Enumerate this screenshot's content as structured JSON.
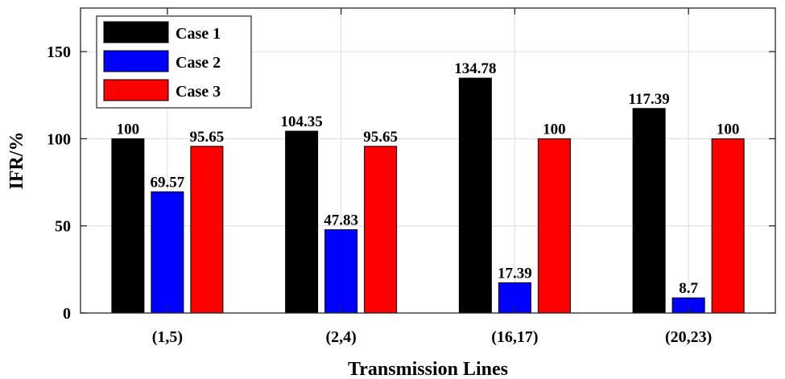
{
  "chart_data": {
    "type": "bar",
    "title": "",
    "xlabel": "Transmission Lines",
    "ylabel": "IFR/%",
    "categories": [
      "(1,5)",
      "(2,4)",
      "(16,17)",
      "(20,23)"
    ],
    "ylim": [
      0,
      175
    ],
    "yticks": [
      0,
      50,
      100,
      150
    ],
    "grid": true,
    "legend_position": "top-left",
    "series": [
      {
        "name": "Case 1",
        "color": "#000000",
        "values": [
          100,
          104.35,
          134.78,
          117.39
        ],
        "labels": [
          "100",
          "104.35",
          "134.78",
          "117.39"
        ]
      },
      {
        "name": "Case 2",
        "color": "#0000ff",
        "values": [
          69.57,
          47.83,
          17.39,
          8.7
        ],
        "labels": [
          "69.57",
          "47.83",
          "17.39",
          "8.7"
        ]
      },
      {
        "name": "Case 3",
        "color": "#ff0000",
        "values": [
          95.65,
          95.65,
          100,
          100
        ],
        "labels": [
          "95.65",
          "95.65",
          "100",
          "100"
        ]
      }
    ]
  }
}
